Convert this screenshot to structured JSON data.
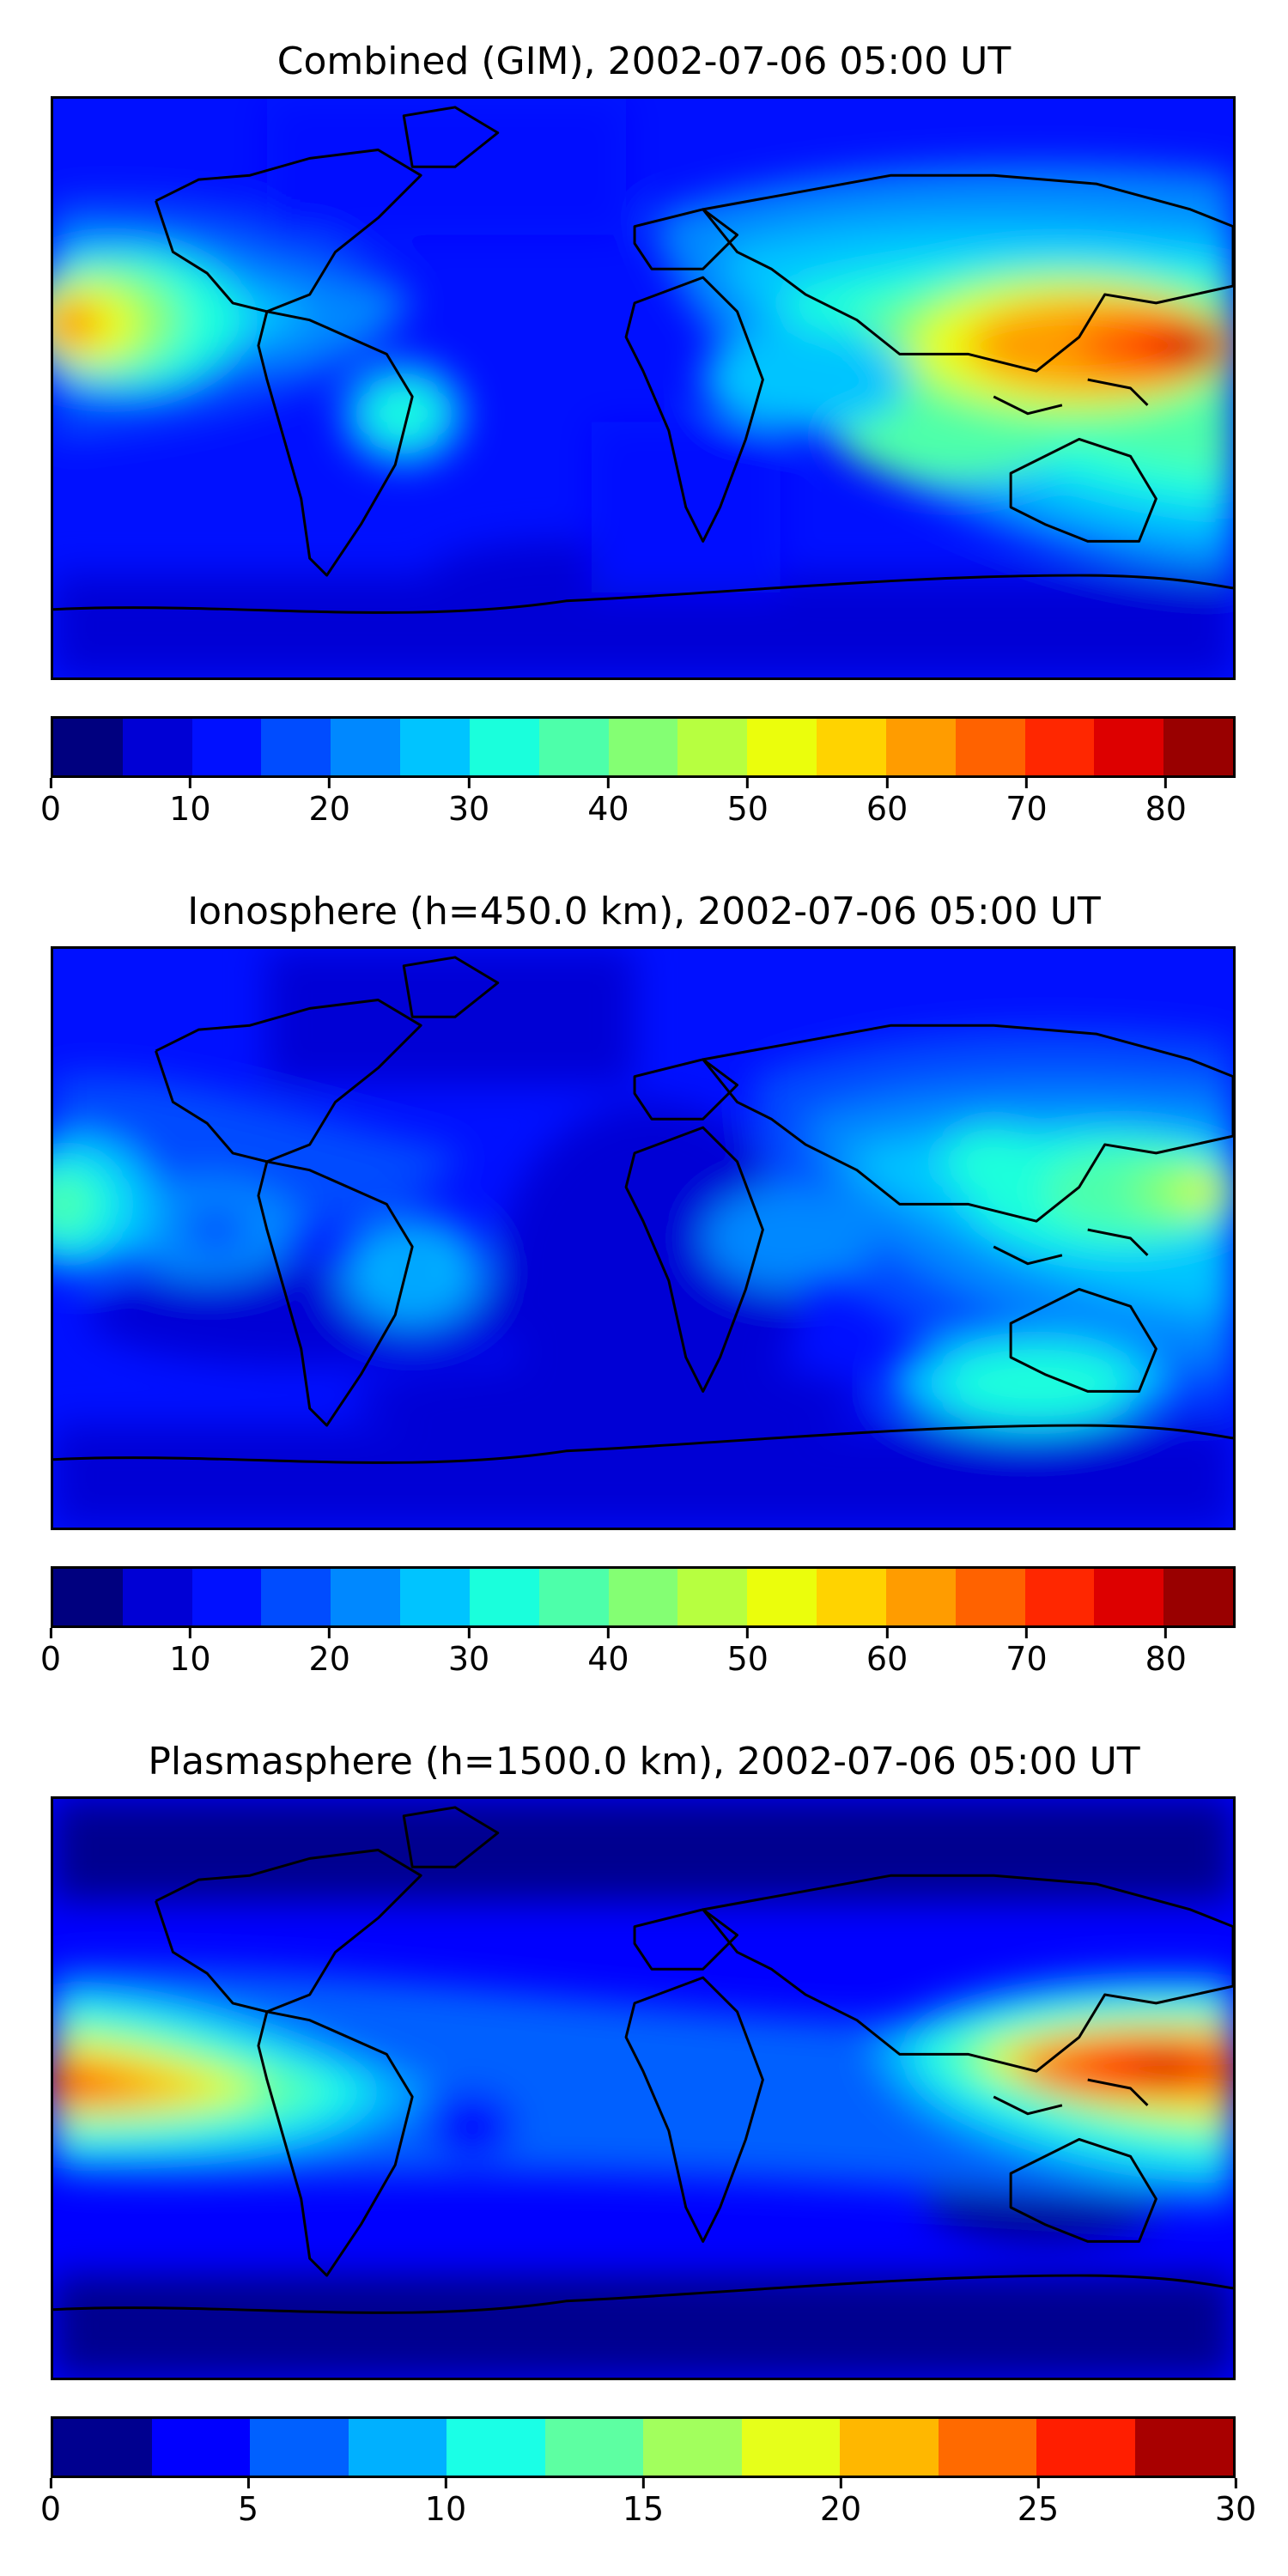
{
  "panels": [
    {
      "title": "Combined (GIM), 2002-07-06 05:00 UT",
      "colorbar": {
        "min": 0,
        "max": 85,
        "step": 5,
        "ticks": [
          "0",
          "10",
          "20",
          "30",
          "40",
          "50",
          "60",
          "70",
          "80"
        ],
        "tick_values": [
          0,
          10,
          20,
          30,
          40,
          50,
          60,
          70,
          80
        ]
      }
    },
    {
      "title": "Ionosphere  (h=450.0 km), 2002-07-06 05:00 UT",
      "colorbar": {
        "min": 0,
        "max": 85,
        "step": 5,
        "ticks": [
          "0",
          "10",
          "20",
          "30",
          "40",
          "50",
          "60",
          "70",
          "80"
        ],
        "tick_values": [
          0,
          10,
          20,
          30,
          40,
          50,
          60,
          70,
          80
        ]
      }
    },
    {
      "title": "Plasmasphere (h=1500.0 km), 2002-07-06 05:00 UT",
      "colorbar": {
        "min": 0,
        "max": 30,
        "step": 2.5,
        "ticks": [
          "0",
          "5",
          "10",
          "15",
          "20",
          "25",
          "30"
        ],
        "tick_values": [
          0,
          5,
          10,
          15,
          20,
          25,
          30
        ]
      }
    }
  ],
  "colors": {
    "jet17": [
      "#00007f",
      "#0000d5",
      "#0010ff",
      "#004cff",
      "#0088ff",
      "#00c4ff",
      "#1affdc",
      "#4dffaa",
      "#84ff73",
      "#b7ff40",
      "#ebfe0c",
      "#ffd300",
      "#ff9c00",
      "#ff6200",
      "#ff2700",
      "#dd0000",
      "#990000"
    ],
    "jet12": [
      "#00008f",
      "#0000ff",
      "#0060ff",
      "#00b0ff",
      "#1affe6",
      "#5dffa2",
      "#a2ff5d",
      "#e6ff1a",
      "#ffb700",
      "#ff6a00",
      "#ff1e00",
      "#a80000"
    ],
    "land_outline": "#000000"
  }
}
